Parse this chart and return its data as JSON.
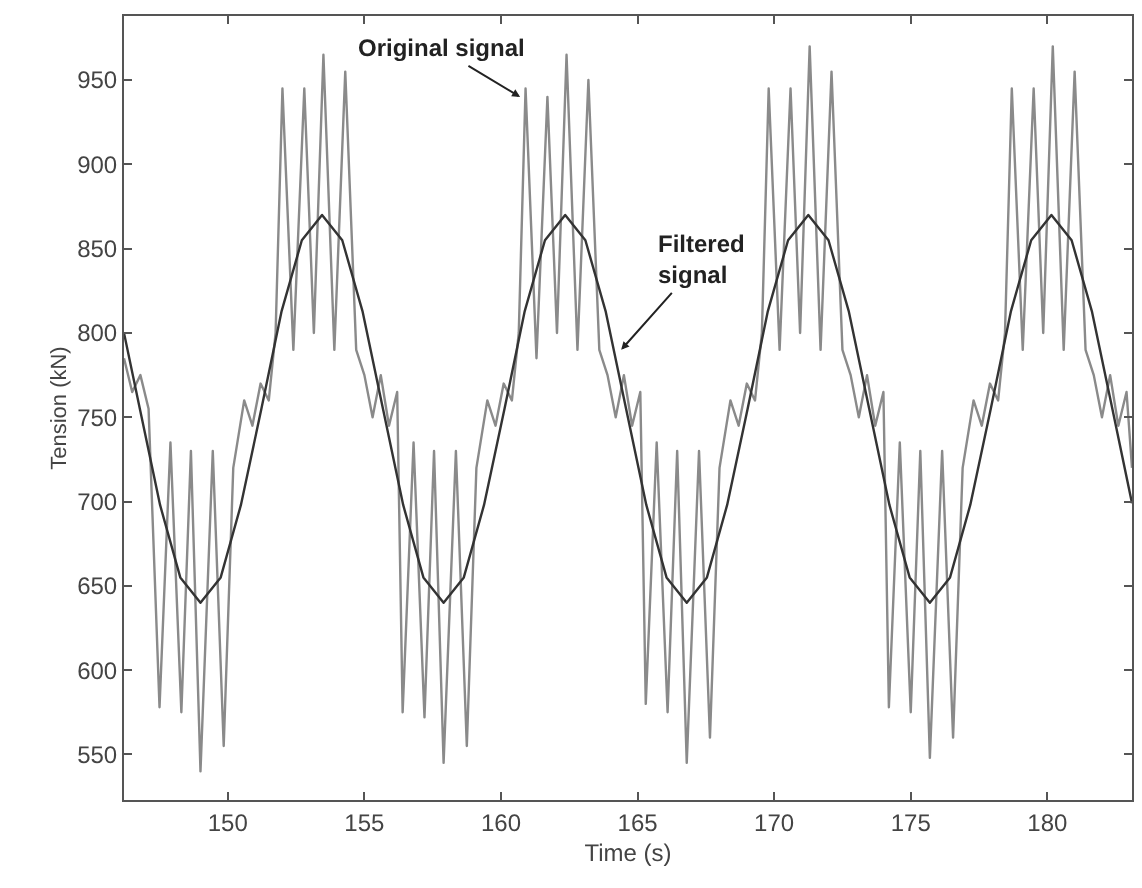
{
  "chart_data": {
    "type": "line",
    "xlabel": "Time (s)",
    "ylabel": "Tension (kN)",
    "xlim": [
      146.2,
      183.1
    ],
    "ylim": [
      523,
      988
    ],
    "xticks": [
      150,
      155,
      160,
      165,
      170,
      175,
      180
    ],
    "yticks": [
      550,
      600,
      650,
      700,
      750,
      800,
      850,
      900,
      950
    ],
    "marker": "none",
    "line_style": "solid",
    "annotations": [
      {
        "text": "Original signal",
        "x": 160.7,
        "y": 940
      },
      {
        "text": "Filtered\nsignal",
        "x": 164.4,
        "y": 790
      }
    ],
    "series": [
      {
        "color": "#8a8a8a",
        "x": [
          146.2,
          146.5,
          146.8,
          147.1,
          147.5,
          147.9,
          148.3,
          148.65,
          149.0,
          149.45,
          149.85,
          150.2,
          150.6,
          150.9,
          151.2,
          151.5,
          151.75,
          152.0,
          152.4,
          152.8,
          153.15,
          153.5,
          153.9,
          154.3,
          154.7,
          155.0,
          155.3,
          155.6,
          155.9,
          156.2,
          156.4,
          156.8,
          157.2,
          157.55,
          157.9,
          158.35,
          158.75,
          159.1,
          159.5,
          159.8,
          160.1,
          160.4,
          160.65,
          160.9,
          161.3,
          161.7,
          162.05,
          162.4,
          162.8,
          163.2,
          163.6,
          163.9,
          164.2,
          164.5,
          164.8,
          165.1,
          165.3,
          165.7,
          166.1,
          166.45,
          166.8,
          167.25,
          167.65,
          168.0,
          168.4,
          168.7,
          169.0,
          169.3,
          169.55,
          169.8,
          170.2,
          170.6,
          170.95,
          171.3,
          171.7,
          172.1,
          172.5,
          172.8,
          173.1,
          173.4,
          173.7,
          174.0,
          174.2,
          174.6,
          175.0,
          175.35,
          175.7,
          176.15,
          176.55,
          176.9,
          177.3,
          177.6,
          177.9,
          178.2,
          178.45,
          178.7,
          179.1,
          179.5,
          179.85,
          180.2,
          180.6,
          181.0,
          181.4,
          181.7,
          182.0,
          182.3,
          182.6,
          182.9,
          183.1
        ],
        "values": [
          785,
          765,
          775,
          755,
          578,
          735,
          575,
          730,
          540,
          730,
          555,
          720,
          760,
          745,
          770,
          760,
          800,
          945,
          790,
          945,
          800,
          965,
          790,
          955,
          790,
          775,
          750,
          775,
          745,
          765,
          575,
          735,
          572,
          730,
          545,
          730,
          555,
          720,
          760,
          745,
          770,
          760,
          800,
          945,
          785,
          940,
          800,
          965,
          790,
          950,
          790,
          775,
          750,
          775,
          745,
          765,
          580,
          735,
          575,
          730,
          545,
          730,
          560,
          720,
          760,
          745,
          770,
          760,
          800,
          945,
          790,
          945,
          800,
          970,
          790,
          955,
          790,
          775,
          750,
          775,
          745,
          765,
          578,
          735,
          575,
          730,
          548,
          730,
          560,
          720,
          760,
          745,
          770,
          760,
          800,
          945,
          790,
          945,
          800,
          970,
          790,
          955,
          790,
          775,
          750,
          775,
          745,
          765,
          720
        ]
      },
      {
        "color": "#333333",
        "x": [
          146.2,
          146.78,
          147.52,
          148.26,
          149.0,
          149.74,
          150.48,
          151.23,
          151.97,
          152.71,
          153.45,
          154.19,
          154.93,
          155.68,
          156.42,
          157.16,
          157.9,
          158.64,
          159.38,
          160.13,
          160.87,
          161.61,
          162.35,
          163.09,
          163.83,
          164.58,
          165.32,
          166.06,
          166.8,
          167.54,
          168.28,
          169.03,
          169.77,
          170.51,
          171.25,
          171.99,
          172.73,
          173.48,
          174.22,
          174.96,
          175.7,
          176.44,
          177.18,
          177.93,
          178.67,
          179.41,
          180.15,
          180.89,
          181.63,
          182.38,
          183.1
        ],
        "values": [
          800,
          755,
          698,
          655,
          640,
          655,
          698,
          755,
          813,
          855,
          870,
          855,
          813,
          755,
          698,
          655,
          640,
          655,
          698,
          755,
          813,
          855,
          870,
          855,
          813,
          755,
          698,
          655,
          640,
          655,
          698,
          755,
          813,
          855,
          870,
          855,
          813,
          755,
          698,
          655,
          640,
          655,
          698,
          755,
          813,
          855,
          870,
          855,
          813,
          755,
          699
        ]
      }
    ]
  }
}
